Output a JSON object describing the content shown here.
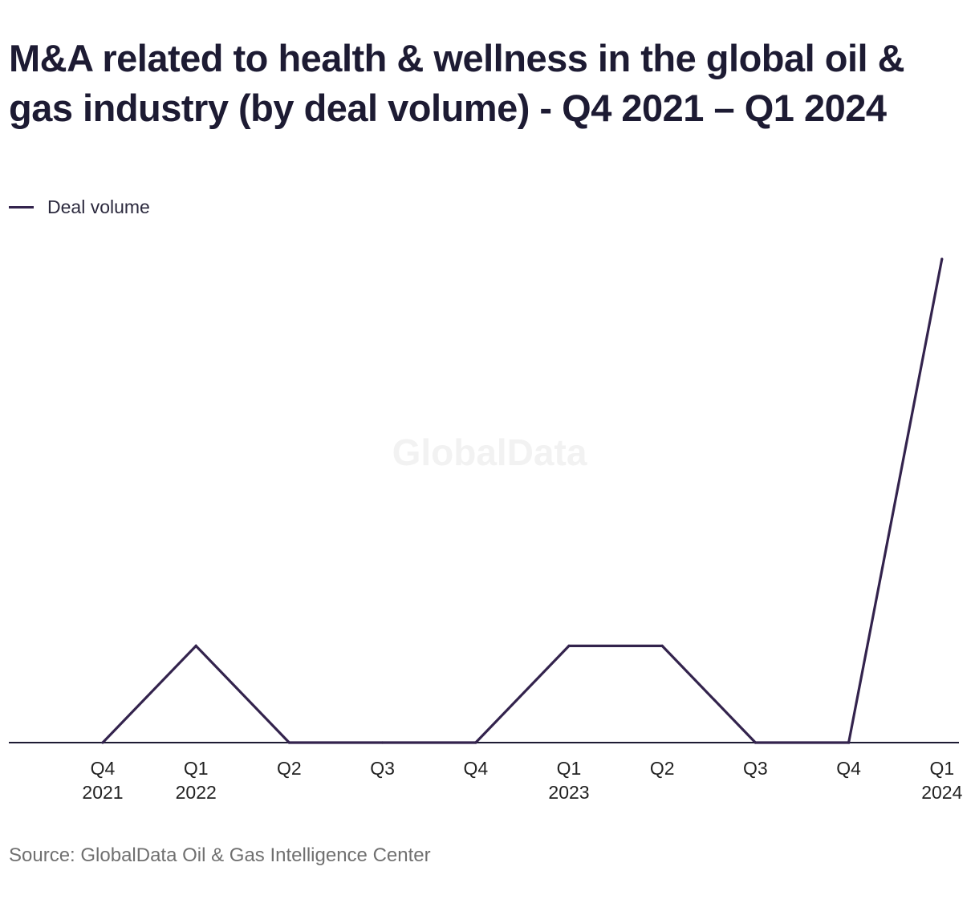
{
  "title": "M&A related to health & wellness in the global oil & gas industry (by deal volume) - Q4 2021 – Q1 2024",
  "source": "Source: GlobalData Oil & Gas Intelligence Center",
  "watermark": "GlobalData",
  "colors": {
    "line": "#33234d",
    "axis": "#1d1b33",
    "text": "#1d1b33",
    "muted": "#707070"
  },
  "chart_data": {
    "type": "line",
    "title": "M&A related to health & wellness in the global oil & gas industry (by deal volume) - Q4 2021 – Q1 2024",
    "xlabel": "",
    "ylabel": "",
    "x": [
      [
        "Q4",
        "2021"
      ],
      [
        "Q1",
        "2022"
      ],
      [
        "Q2"
      ],
      [
        "Q3"
      ],
      [
        "Q4"
      ],
      [
        "Q1",
        "2023"
      ],
      [
        "Q2"
      ],
      [
        "Q3"
      ],
      [
        "Q4"
      ],
      [
        "Q1",
        "2024"
      ]
    ],
    "series": [
      {
        "name": "Deal volume",
        "values": [
          0,
          1,
          0,
          0,
          0,
          1,
          1,
          0,
          0,
          5
        ]
      }
    ],
    "ylim": [
      0,
      5
    ],
    "grid": false,
    "y_axis_visible": false,
    "legend": "top-left"
  }
}
